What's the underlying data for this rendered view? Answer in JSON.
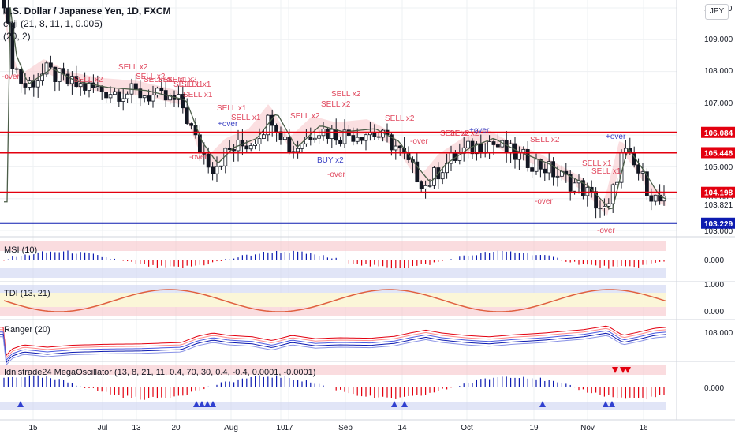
{
  "header": {
    "title": "U.S. Dollar / Japanese Yen, 1D, FXCM",
    "indicator1": "enji (21, 8, 11, 1, 0.005)",
    "indicator2": "(20, 2)",
    "currency_button": "JPY"
  },
  "colors": {
    "up": "#131722",
    "down": "#131722",
    "red_line": "#e3000f",
    "blue_line": "#0d1bb0",
    "ma_line": "#4b5d48",
    "sell_label": "#e0475d",
    "buy_label": "#3b42c4",
    "red_fill": "#f7c5c9",
    "blue_fill": "#cdd3f2"
  },
  "price_axis": {
    "labels": [
      "110.000",
      "109.000",
      "108.000",
      "107.000",
      "106.000",
      "105.000",
      "104.000",
      "103.000"
    ],
    "badges": [
      {
        "value": "106.084",
        "color": "#e3000f"
      },
      {
        "value": "105.446",
        "color": "#e3000f"
      },
      {
        "value": "104.198",
        "color": "#e3000f"
      },
      {
        "value": "103.821",
        "color": "#ffffff"
      },
      {
        "value": "103.229",
        "color": "#0d1bb0"
      }
    ]
  },
  "date_axis": [
    "15",
    "Jul",
    "13",
    "20",
    "Aug",
    "10",
    "17",
    "Sep",
    "14",
    "Oct",
    "19",
    "Nov",
    "16"
  ],
  "signals": {
    "sell": [
      "SELL x2",
      "SELL x2",
      "SELL x1",
      "SELL x2",
      "SELL x1",
      "SELL x1",
      "SELL x1",
      "SELL x1",
      "SELL x1",
      "SELL x2",
      "SELL x2",
      "SELL x2",
      "SELL x2",
      "SELL x2",
      "SELL x2",
      "SELL x1",
      "SELL x2",
      "SELL x2",
      "SELL x1",
      "SELL x1"
    ],
    "buy": [
      "BUY x2"
    ],
    "over": [
      "-over",
      "-over",
      "-over",
      "-over",
      "-over",
      "-over",
      "+over",
      "+over",
      "+over"
    ]
  },
  "panes": [
    {
      "label": "MSI (10)",
      "axis": [
        "0.000"
      ]
    },
    {
      "label": "TDI (13, 21)",
      "axis": [
        "1.000",
        "0.000"
      ]
    },
    {
      "label": "Ranger (20)",
      "axis": [
        "108.000"
      ]
    },
    {
      "label": "Idnistrade24 MegaOscillator (13, 8, 21, 11, 0.4, 70, 30, 0.4, -0.4, 0.0001, -0.0001)",
      "axis": [
        "0.000"
      ]
    }
  ]
}
